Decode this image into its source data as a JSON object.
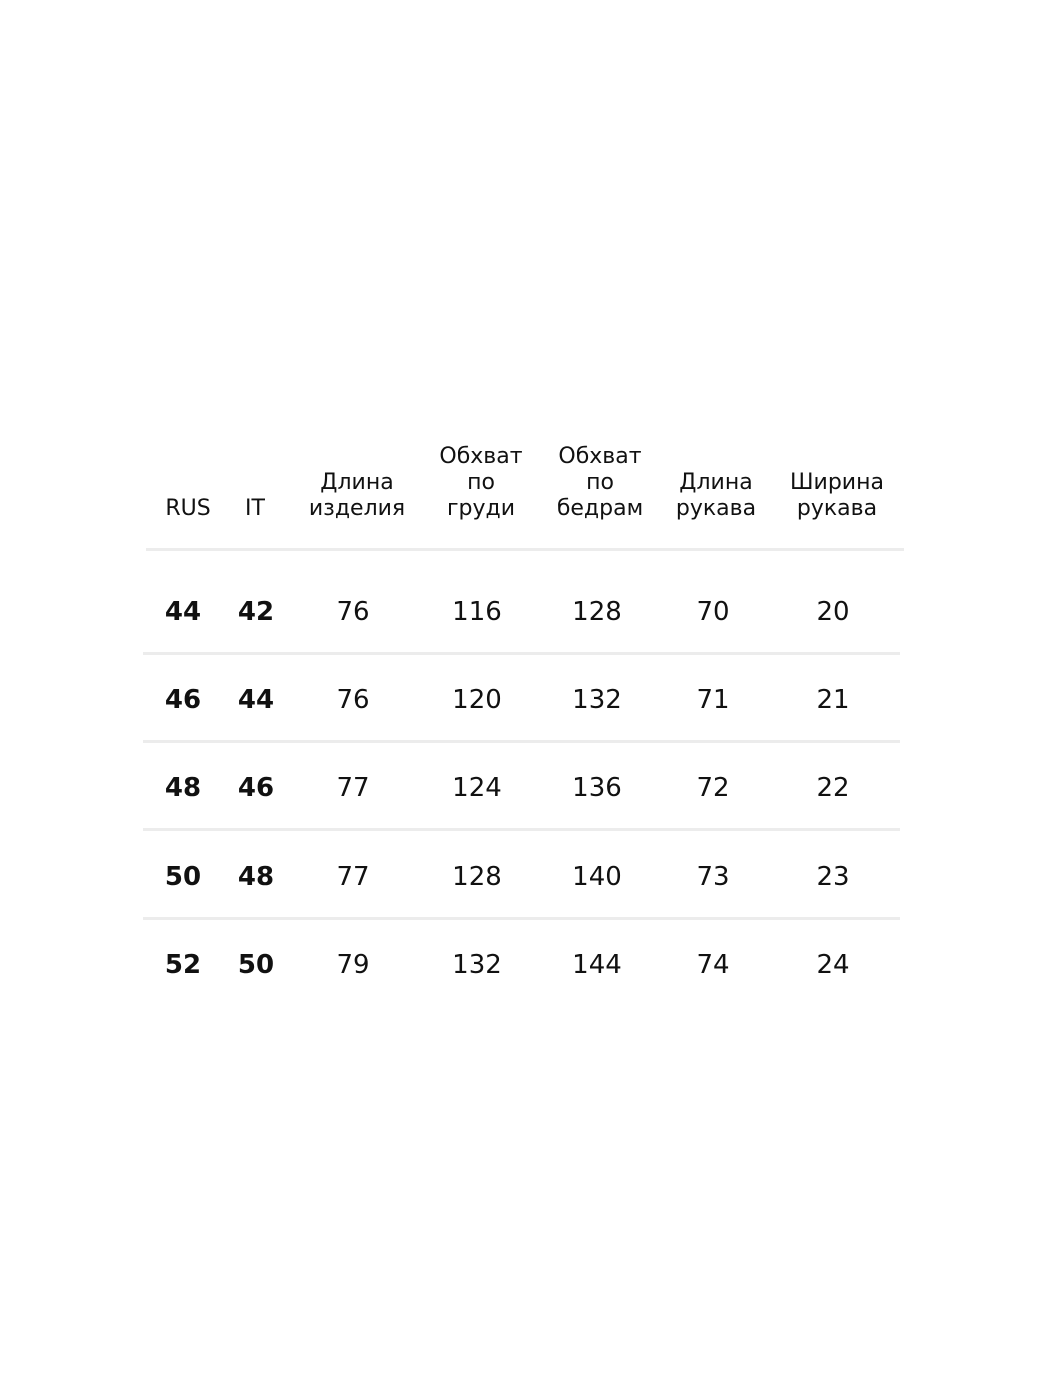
{
  "table": {
    "headers": [
      "RUS",
      "IT",
      "Длина\nизделия",
      "Обхват\nпо\nгруди",
      "Обхват\nпо\nбедрам",
      "Длина\nрукава",
      "Ширина\nрукава"
    ],
    "rows": [
      [
        "44",
        "42",
        "76",
        "116",
        "128",
        "70",
        "20"
      ],
      [
        "46",
        "44",
        "76",
        "120",
        "132",
        "71",
        "21"
      ],
      [
        "48",
        "46",
        "77",
        "124",
        "136",
        "72",
        "22"
      ],
      [
        "50",
        "48",
        "77",
        "128",
        "140",
        "73",
        "23"
      ],
      [
        "52",
        "50",
        "79",
        "132",
        "144",
        "74",
        "24"
      ]
    ]
  }
}
